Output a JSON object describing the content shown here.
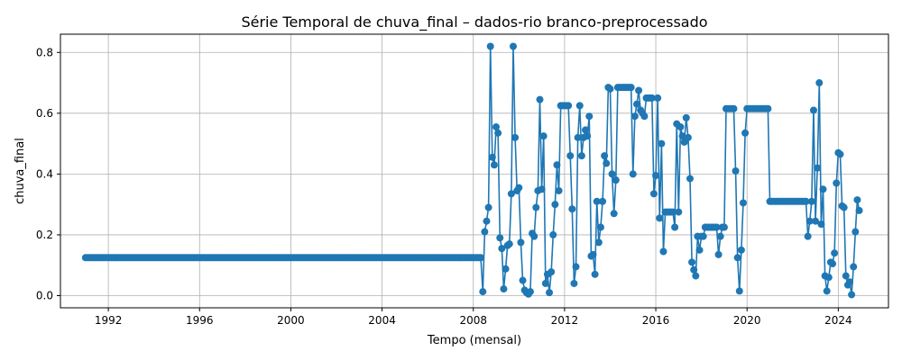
{
  "chart_data": {
    "type": "line",
    "title": "Série Temporal de chuva_final – dados-rio branco-preprocessado",
    "xlabel": "Tempo (mensal)",
    "ylabel": "chuva_final",
    "xlim": [
      1989.9,
      2026.2
    ],
    "ylim": [
      -0.04,
      0.86
    ],
    "grid": true,
    "xticks": [
      1992,
      1996,
      2000,
      2004,
      2008,
      2012,
      2016,
      2020,
      2024
    ],
    "yticks": [
      0.0,
      0.2,
      0.4,
      0.6,
      0.8
    ],
    "series_color": "#1f77b4",
    "series": [
      {
        "flat_segment": {
          "x_start": 1991.0,
          "x_end": 2008.333,
          "step": 0.0833,
          "y": 0.125
        },
        "points": [
          [
            2008.417,
            0.013
          ],
          [
            2008.5,
            0.21
          ],
          [
            2008.583,
            0.245
          ],
          [
            2008.667,
            0.29
          ],
          [
            2008.75,
            0.82
          ],
          [
            2008.833,
            0.455
          ],
          [
            2008.917,
            0.43
          ],
          [
            2009.0,
            0.555
          ],
          [
            2009.083,
            0.535
          ],
          [
            2009.167,
            0.19
          ],
          [
            2009.25,
            0.155
          ],
          [
            2009.333,
            0.022
          ],
          [
            2009.417,
            0.088
          ],
          [
            2009.5,
            0.165
          ],
          [
            2009.583,
            0.17
          ],
          [
            2009.667,
            0.335
          ],
          [
            2009.75,
            0.82
          ],
          [
            2009.833,
            0.52
          ],
          [
            2009.917,
            0.345
          ],
          [
            2010.0,
            0.355
          ],
          [
            2010.083,
            0.175
          ],
          [
            2010.167,
            0.05
          ],
          [
            2010.25,
            0.018
          ],
          [
            2010.333,
            0.01
          ],
          [
            2010.417,
            0.005
          ],
          [
            2010.5,
            0.013
          ],
          [
            2010.583,
            0.205
          ],
          [
            2010.667,
            0.195
          ],
          [
            2010.75,
            0.29
          ],
          [
            2010.833,
            0.345
          ],
          [
            2010.917,
            0.645
          ],
          [
            2011.0,
            0.35
          ],
          [
            2011.083,
            0.525
          ],
          [
            2011.167,
            0.04
          ],
          [
            2011.25,
            0.07
          ],
          [
            2011.333,
            0.01
          ],
          [
            2011.417,
            0.078
          ],
          [
            2011.5,
            0.2
          ],
          [
            2011.583,
            0.3
          ],
          [
            2011.667,
            0.43
          ],
          [
            2011.75,
            0.345
          ],
          [
            2011.833,
            0.625
          ],
          [
            2011.917,
            0.625
          ],
          [
            2012.0,
            0.625
          ],
          [
            2012.083,
            0.625
          ],
          [
            2012.167,
            0.625
          ],
          [
            2012.25,
            0.46
          ],
          [
            2012.333,
            0.285
          ],
          [
            2012.417,
            0.04
          ],
          [
            2012.5,
            0.095
          ],
          [
            2012.583,
            0.52
          ],
          [
            2012.667,
            0.625
          ],
          [
            2012.75,
            0.46
          ],
          [
            2012.833,
            0.52
          ],
          [
            2012.917,
            0.545
          ],
          [
            2013.0,
            0.525
          ],
          [
            2013.083,
            0.59
          ],
          [
            2013.167,
            0.13
          ],
          [
            2013.25,
            0.135
          ],
          [
            2013.333,
            0.07
          ],
          [
            2013.417,
            0.31
          ],
          [
            2013.5,
            0.175
          ],
          [
            2013.583,
            0.225
          ],
          [
            2013.667,
            0.31
          ],
          [
            2013.75,
            0.46
          ],
          [
            2013.833,
            0.435
          ],
          [
            2013.917,
            0.685
          ],
          [
            2014.0,
            0.68
          ],
          [
            2014.083,
            0.4
          ],
          [
            2014.167,
            0.27
          ],
          [
            2014.25,
            0.38
          ],
          [
            2014.333,
            0.685
          ],
          [
            2014.417,
            0.685
          ],
          [
            2014.5,
            0.685
          ],
          [
            2014.583,
            0.685
          ],
          [
            2014.667,
            0.685
          ],
          [
            2014.75,
            0.685
          ],
          [
            2014.833,
            0.685
          ],
          [
            2014.917,
            0.685
          ],
          [
            2015.0,
            0.4
          ],
          [
            2015.083,
            0.59
          ],
          [
            2015.167,
            0.63
          ],
          [
            2015.25,
            0.675
          ],
          [
            2015.333,
            0.61
          ],
          [
            2015.417,
            0.6
          ],
          [
            2015.5,
            0.59
          ],
          [
            2015.583,
            0.65
          ],
          [
            2015.667,
            0.65
          ],
          [
            2015.75,
            0.65
          ],
          [
            2015.833,
            0.65
          ],
          [
            2015.917,
            0.335
          ],
          [
            2016.0,
            0.395
          ],
          [
            2016.083,
            0.65
          ],
          [
            2016.167,
            0.255
          ],
          [
            2016.25,
            0.5
          ],
          [
            2016.333,
            0.145
          ],
          [
            2016.417,
            0.275
          ],
          [
            2016.5,
            0.275
          ],
          [
            2016.583,
            0.275
          ],
          [
            2016.667,
            0.275
          ],
          [
            2016.75,
            0.275
          ],
          [
            2016.833,
            0.225
          ],
          [
            2016.917,
            0.565
          ],
          [
            2017.0,
            0.275
          ],
          [
            2017.083,
            0.555
          ],
          [
            2017.167,
            0.525
          ],
          [
            2017.25,
            0.505
          ],
          [
            2017.333,
            0.585
          ],
          [
            2017.417,
            0.52
          ],
          [
            2017.5,
            0.385
          ],
          [
            2017.583,
            0.11
          ],
          [
            2017.667,
            0.085
          ],
          [
            2017.75,
            0.065
          ],
          [
            2017.833,
            0.195
          ],
          [
            2017.917,
            0.15
          ],
          [
            2018.0,
            0.195
          ],
          [
            2018.083,
            0.195
          ],
          [
            2018.167,
            0.225
          ],
          [
            2018.25,
            0.225
          ],
          [
            2018.333,
            0.225
          ],
          [
            2018.417,
            0.225
          ],
          [
            2018.5,
            0.225
          ],
          [
            2018.583,
            0.225
          ],
          [
            2018.667,
            0.225
          ],
          [
            2018.75,
            0.135
          ],
          [
            2018.833,
            0.195
          ],
          [
            2018.917,
            0.225
          ],
          [
            2019.0,
            0.225
          ],
          [
            2019.083,
            0.615
          ],
          [
            2019.167,
            0.615
          ],
          [
            2019.25,
            0.615
          ],
          [
            2019.333,
            0.615
          ],
          [
            2019.417,
            0.615
          ],
          [
            2019.5,
            0.41
          ],
          [
            2019.583,
            0.125
          ],
          [
            2019.667,
            0.015
          ],
          [
            2019.75,
            0.15
          ],
          [
            2019.833,
            0.305
          ],
          [
            2019.917,
            0.535
          ],
          [
            2020.0,
            0.615
          ],
          [
            2020.083,
            0.615
          ],
          [
            2020.167,
            0.615
          ],
          [
            2020.25,
            0.615
          ],
          [
            2020.333,
            0.615
          ],
          [
            2020.417,
            0.615
          ],
          [
            2020.5,
            0.615
          ],
          [
            2020.583,
            0.615
          ],
          [
            2020.667,
            0.615
          ],
          [
            2020.75,
            0.615
          ],
          [
            2020.833,
            0.615
          ],
          [
            2020.917,
            0.615
          ],
          [
            2021.0,
            0.31
          ],
          [
            2021.083,
            0.31
          ],
          [
            2021.167,
            0.31
          ],
          [
            2021.25,
            0.31
          ],
          [
            2021.333,
            0.31
          ],
          [
            2021.417,
            0.31
          ],
          [
            2021.5,
            0.31
          ],
          [
            2021.583,
            0.31
          ],
          [
            2021.667,
            0.31
          ],
          [
            2021.75,
            0.31
          ],
          [
            2021.833,
            0.31
          ],
          [
            2021.917,
            0.31
          ],
          [
            2022.0,
            0.31
          ],
          [
            2022.083,
            0.31
          ],
          [
            2022.167,
            0.31
          ],
          [
            2022.25,
            0.31
          ],
          [
            2022.333,
            0.31
          ],
          [
            2022.417,
            0.31
          ],
          [
            2022.5,
            0.31
          ],
          [
            2022.583,
            0.31
          ],
          [
            2022.667,
            0.195
          ],
          [
            2022.75,
            0.245
          ],
          [
            2022.833,
            0.31
          ],
          [
            2022.917,
            0.61
          ],
          [
            2023.0,
            0.245
          ],
          [
            2023.083,
            0.42
          ],
          [
            2023.167,
            0.7
          ],
          [
            2023.25,
            0.235
          ],
          [
            2023.333,
            0.35
          ],
          [
            2023.417,
            0.065
          ],
          [
            2023.5,
            0.015
          ],
          [
            2023.583,
            0.06
          ],
          [
            2023.667,
            0.11
          ],
          [
            2023.75,
            0.105
          ],
          [
            2023.833,
            0.14
          ],
          [
            2023.917,
            0.37
          ],
          [
            2024.0,
            0.47
          ],
          [
            2024.083,
            0.465
          ],
          [
            2024.167,
            0.295
          ],
          [
            2024.25,
            0.29
          ],
          [
            2024.333,
            0.065
          ],
          [
            2024.417,
            0.035
          ],
          [
            2024.5,
            0.045
          ],
          [
            2024.583,
            0.003
          ],
          [
            2024.667,
            0.095
          ],
          [
            2024.75,
            0.21
          ],
          [
            2024.833,
            0.315
          ],
          [
            2024.917,
            0.28
          ]
        ]
      }
    ]
  }
}
